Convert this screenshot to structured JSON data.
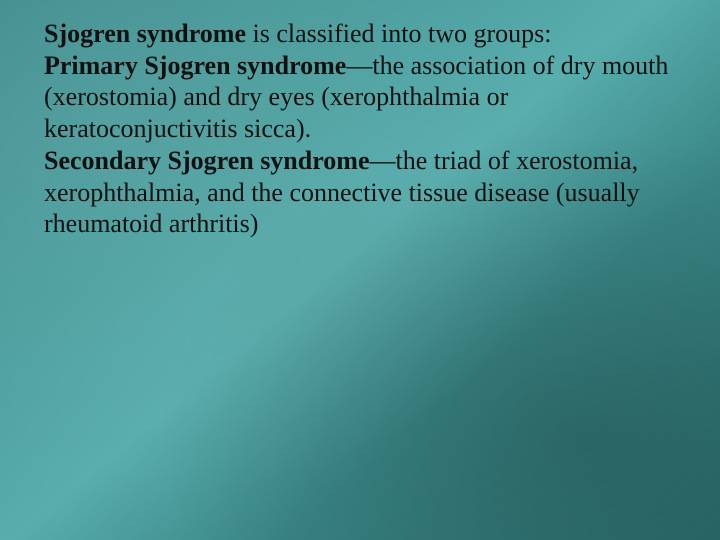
{
  "slide": {
    "background": {
      "gradient_start": "#3e8c8c",
      "gradient_mid1": "#4b9e9e",
      "gradient_mid2": "#58adad",
      "gradient_end": "#2c6e6e"
    },
    "text_color": "#111111",
    "font_family": "Times New Roman",
    "font_size_pt": 20,
    "line1_bold": "Sjogren syndrome",
    "line1_rest": " is classified into two groups:",
    "primary_bold": "Primary Sjogren syndrome",
    "primary_rest": "—the association of dry mouth (xerostomia) and dry eyes (xerophthalmia or keratoconjuctivitis sicca).",
    "secondary_bold": "Secondary Sjogren syndrome",
    "secondary_rest": "—the triad of xerostomia, xerophthalmia, and the connective tissue disease (usually rheumatoid arthritis)"
  }
}
